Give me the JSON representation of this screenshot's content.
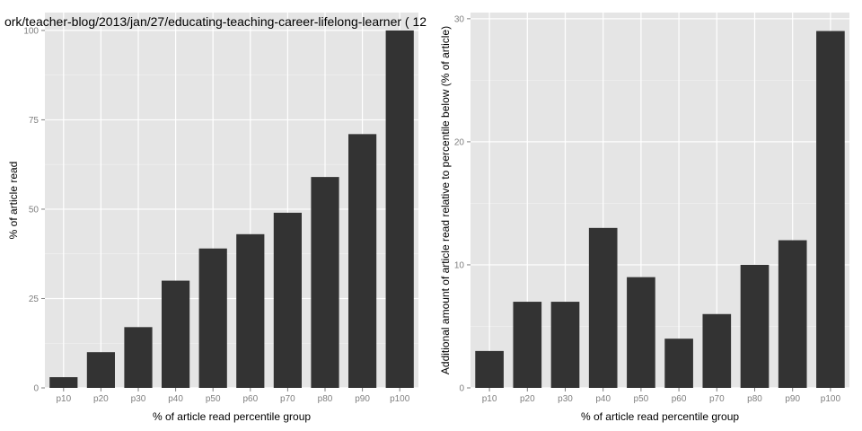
{
  "chart_data": [
    {
      "type": "bar",
      "title": "ork/teacher-blog/2013/jan/27/educating-teaching-career-lifelong-learner ( 12",
      "xlabel": "% of article read percentile group",
      "ylabel": "% of article read",
      "categories": [
        "p10",
        "p20",
        "p30",
        "p40",
        "p50",
        "p60",
        "p70",
        "p80",
        "p90",
        "p100"
      ],
      "values": [
        3,
        10,
        17,
        30,
        39,
        43,
        49,
        59,
        71,
        100
      ],
      "ylim": [
        0,
        105
      ],
      "yticks": [
        0,
        25,
        50,
        75,
        100
      ],
      "grid": true,
      "bar_color": "#333333",
      "panel_color": "#e5e5e5"
    },
    {
      "type": "bar",
      "title": "",
      "xlabel": "% of article read percentile group",
      "ylabel": "Additional amount of article read relative to percentile below (% of article)",
      "categories": [
        "p10",
        "p20",
        "p30",
        "p40",
        "p50",
        "p60",
        "p70",
        "p80",
        "p90",
        "p100"
      ],
      "values": [
        3,
        7,
        7,
        13,
        9,
        4,
        6,
        10,
        12,
        29
      ],
      "ylim": [
        0,
        30.5
      ],
      "yticks": [
        0,
        10,
        20,
        30
      ],
      "grid": true,
      "bar_color": "#333333",
      "panel_color": "#e5e5e5"
    }
  ]
}
